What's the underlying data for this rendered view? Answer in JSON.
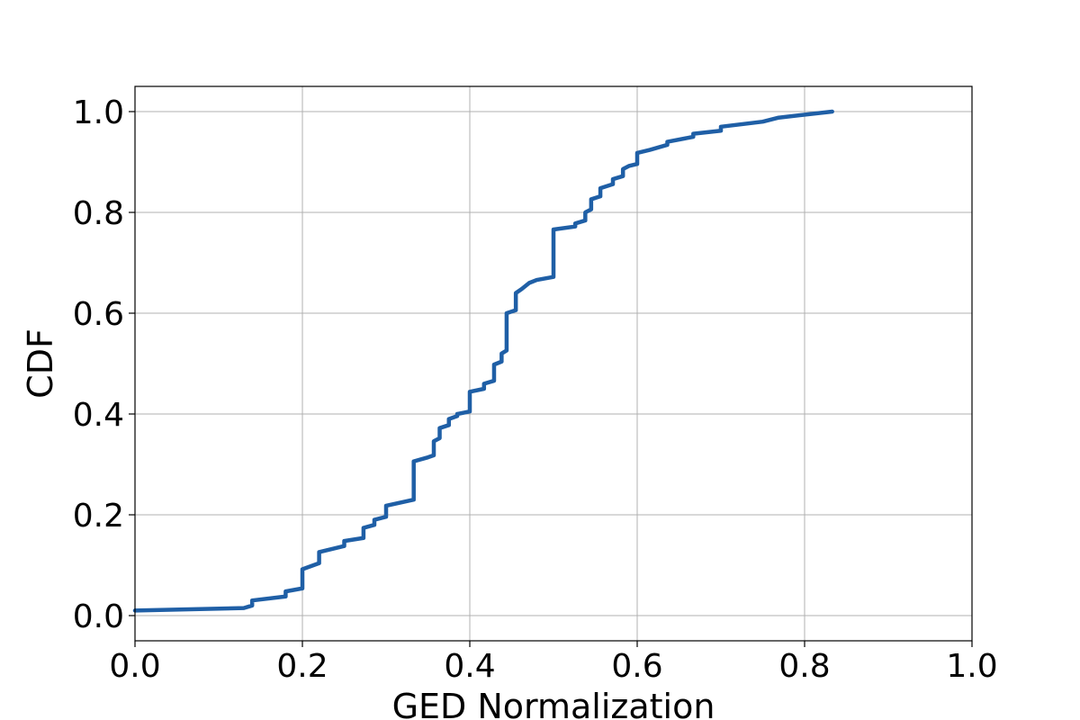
{
  "chart_data": {
    "type": "line",
    "xlabel": "GED Normalization",
    "ylabel": "CDF",
    "xlim": [
      0.0,
      1.0
    ],
    "ylim": [
      -0.05,
      1.05
    ],
    "x_ticks": [
      "0.0",
      "0.2",
      "0.4",
      "0.6",
      "0.8",
      "1.0"
    ],
    "y_ticks": [
      "0.0",
      "0.2",
      "0.4",
      "0.6",
      "0.8",
      "1.0"
    ],
    "grid": true,
    "series": [
      {
        "color": "#1f5fa6",
        "points": [
          [
            0.0,
            0.01
          ],
          [
            0.13,
            0.015
          ],
          [
            0.14,
            0.02
          ],
          [
            0.14,
            0.03
          ],
          [
            0.18,
            0.038
          ],
          [
            0.18,
            0.048
          ],
          [
            0.2,
            0.054
          ],
          [
            0.2,
            0.092
          ],
          [
            0.22,
            0.104
          ],
          [
            0.22,
            0.126
          ],
          [
            0.25,
            0.138
          ],
          [
            0.25,
            0.148
          ],
          [
            0.273,
            0.154
          ],
          [
            0.273,
            0.174
          ],
          [
            0.286,
            0.18
          ],
          [
            0.286,
            0.19
          ],
          [
            0.3,
            0.196
          ],
          [
            0.3,
            0.218
          ],
          [
            0.333,
            0.23
          ],
          [
            0.333,
            0.306
          ],
          [
            0.35,
            0.314
          ],
          [
            0.357,
            0.318
          ],
          [
            0.357,
            0.346
          ],
          [
            0.364,
            0.352
          ],
          [
            0.364,
            0.372
          ],
          [
            0.375,
            0.378
          ],
          [
            0.375,
            0.39
          ],
          [
            0.385,
            0.396
          ],
          [
            0.385,
            0.4
          ],
          [
            0.4,
            0.405
          ],
          [
            0.4,
            0.444
          ],
          [
            0.417,
            0.45
          ],
          [
            0.417,
            0.46
          ],
          [
            0.429,
            0.466
          ],
          [
            0.429,
            0.498
          ],
          [
            0.438,
            0.504
          ],
          [
            0.438,
            0.52
          ],
          [
            0.444,
            0.526
          ],
          [
            0.444,
            0.6
          ],
          [
            0.455,
            0.606
          ],
          [
            0.455,
            0.64
          ],
          [
            0.462,
            0.648
          ],
          [
            0.471,
            0.66
          ],
          [
            0.48,
            0.666
          ],
          [
            0.5,
            0.672
          ],
          [
            0.5,
            0.766
          ],
          [
            0.526,
            0.772
          ],
          [
            0.526,
            0.778
          ],
          [
            0.538,
            0.784
          ],
          [
            0.538,
            0.8
          ],
          [
            0.545,
            0.806
          ],
          [
            0.545,
            0.826
          ],
          [
            0.556,
            0.832
          ],
          [
            0.556,
            0.848
          ],
          [
            0.571,
            0.856
          ],
          [
            0.571,
            0.866
          ],
          [
            0.583,
            0.872
          ],
          [
            0.583,
            0.886
          ],
          [
            0.59,
            0.892
          ],
          [
            0.6,
            0.896
          ],
          [
            0.6,
            0.918
          ],
          [
            0.615,
            0.924
          ],
          [
            0.636,
            0.934
          ],
          [
            0.636,
            0.94
          ],
          [
            0.667,
            0.95
          ],
          [
            0.667,
            0.956
          ],
          [
            0.7,
            0.962
          ],
          [
            0.7,
            0.97
          ],
          [
            0.75,
            0.98
          ],
          [
            0.769,
            0.988
          ],
          [
            0.833,
            1.0
          ]
        ]
      }
    ]
  }
}
